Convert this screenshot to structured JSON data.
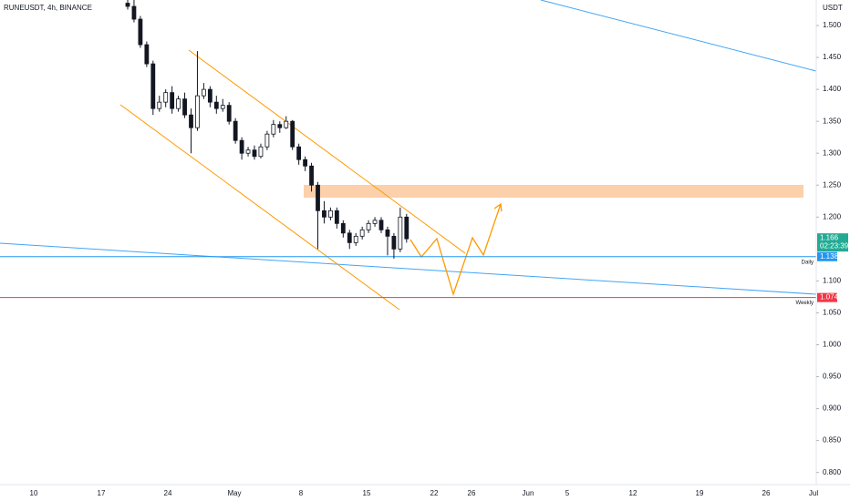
{
  "chart_data": {
    "type": "candlestick",
    "title": "RUNEUSDT, 4h, BINANCE",
    "y_unit": "USDT",
    "x_labels": [
      "10",
      "17",
      "24",
      "May",
      "8",
      "15",
      "22",
      "26",
      "Jun",
      "5",
      "12",
      "19",
      "26",
      "Jul"
    ],
    "open": [
      1.535,
      1.53,
      1.51,
      1.47,
      1.44,
      1.37,
      1.38,
      1.395,
      1.37,
      1.385,
      1.36,
      1.34,
      1.39,
      1.4,
      1.38,
      1.37,
      1.375,
      1.35,
      1.32,
      1.3,
      1.305,
      1.295,
      1.31,
      1.33,
      1.345,
      1.34,
      1.35,
      1.31,
      1.29,
      1.28,
      1.25,
      1.21,
      1.2,
      1.21,
      1.19,
      1.175,
      1.16,
      1.17,
      1.18,
      1.19,
      1.195,
      1.18,
      1.17,
      1.15,
      1.2
    ],
    "high": [
      1.545,
      1.54,
      1.515,
      1.475,
      1.445,
      1.39,
      1.4,
      1.405,
      1.39,
      1.395,
      1.37,
      1.46,
      1.41,
      1.405,
      1.39,
      1.385,
      1.38,
      1.355,
      1.325,
      1.31,
      1.312,
      1.315,
      1.335,
      1.352,
      1.35,
      1.358,
      1.352,
      1.315,
      1.295,
      1.285,
      1.255,
      1.225,
      1.215,
      1.215,
      1.195,
      1.18,
      1.175,
      1.185,
      1.195,
      1.2,
      1.2,
      1.185,
      1.175,
      1.215,
      1.205
    ],
    "low": [
      1.525,
      1.505,
      1.465,
      1.435,
      1.36,
      1.365,
      1.372,
      1.362,
      1.365,
      1.355,
      1.3,
      1.335,
      1.385,
      1.372,
      1.362,
      1.365,
      1.345,
      1.315,
      1.29,
      1.295,
      1.29,
      1.292,
      1.305,
      1.325,
      1.332,
      1.338,
      1.305,
      1.282,
      1.272,
      1.24,
      1.15,
      1.19,
      1.195,
      1.182,
      1.168,
      1.15,
      1.155,
      1.165,
      1.175,
      1.185,
      1.175,
      1.14,
      1.135,
      1.145,
      1.16
    ],
    "close": [
      1.53,
      1.51,
      1.47,
      1.44,
      1.37,
      1.38,
      1.395,
      1.37,
      1.385,
      1.36,
      1.34,
      1.39,
      1.4,
      1.38,
      1.37,
      1.375,
      1.35,
      1.32,
      1.3,
      1.305,
      1.295,
      1.31,
      1.33,
      1.345,
      1.34,
      1.35,
      1.31,
      1.29,
      1.28,
      1.25,
      1.21,
      1.2,
      1.21,
      1.19,
      1.175,
      1.16,
      1.17,
      1.18,
      1.19,
      1.195,
      1.18,
      1.17,
      1.15,
      1.2,
      1.166
    ],
    "up_color": "#ffffff",
    "down_color": "#131722",
    "last_price_color": "#22ab94",
    "countdown": "02:23:39",
    "levels": [
      {
        "value": 1.138,
        "label": "Daily",
        "color": "#2196f3"
      },
      {
        "value": 1.074,
        "label": "Weekly",
        "color": "#f23645"
      }
    ],
    "ylim": [
      0.781,
      1.54
    ],
    "yticks": [
      {
        "value": 1.5,
        "label": "1.500"
      },
      {
        "value": 1.45,
        "label": "1.450"
      },
      {
        "value": 1.4,
        "label": "1.400"
      },
      {
        "value": 1.35,
        "label": "1.350"
      },
      {
        "value": 1.3,
        "label": "1.300"
      },
      {
        "value": 1.25,
        "label": "1.250"
      },
      {
        "value": 1.2,
        "label": "1.200"
      },
      {
        "value": 1.1,
        "label": "1.100"
      },
      {
        "value": 1.05,
        "label": "1.050"
      },
      {
        "value": 1,
        "label": "1.000"
      },
      {
        "value": 0.95,
        "label": "0.950"
      },
      {
        "value": 0.9,
        "label": "0.900"
      },
      {
        "value": 0.85,
        "label": "0.850"
      },
      {
        "value": 0.8,
        "label": "0.800"
      }
    ]
  }
}
